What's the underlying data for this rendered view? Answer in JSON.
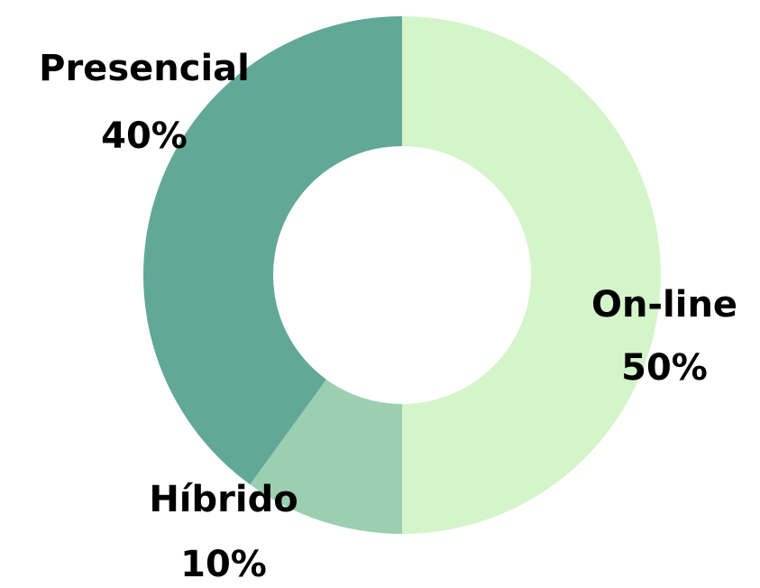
{
  "chart_data": {
    "type": "donut",
    "categories": [
      "On-line",
      "Híbrido",
      "Presencial"
    ],
    "values": [
      50,
      10,
      40
    ],
    "value_labels": [
      "50%",
      "10%",
      "40%"
    ],
    "colors": [
      "#d4f5c9",
      "#9bcfb0",
      "#62a899"
    ]
  }
}
